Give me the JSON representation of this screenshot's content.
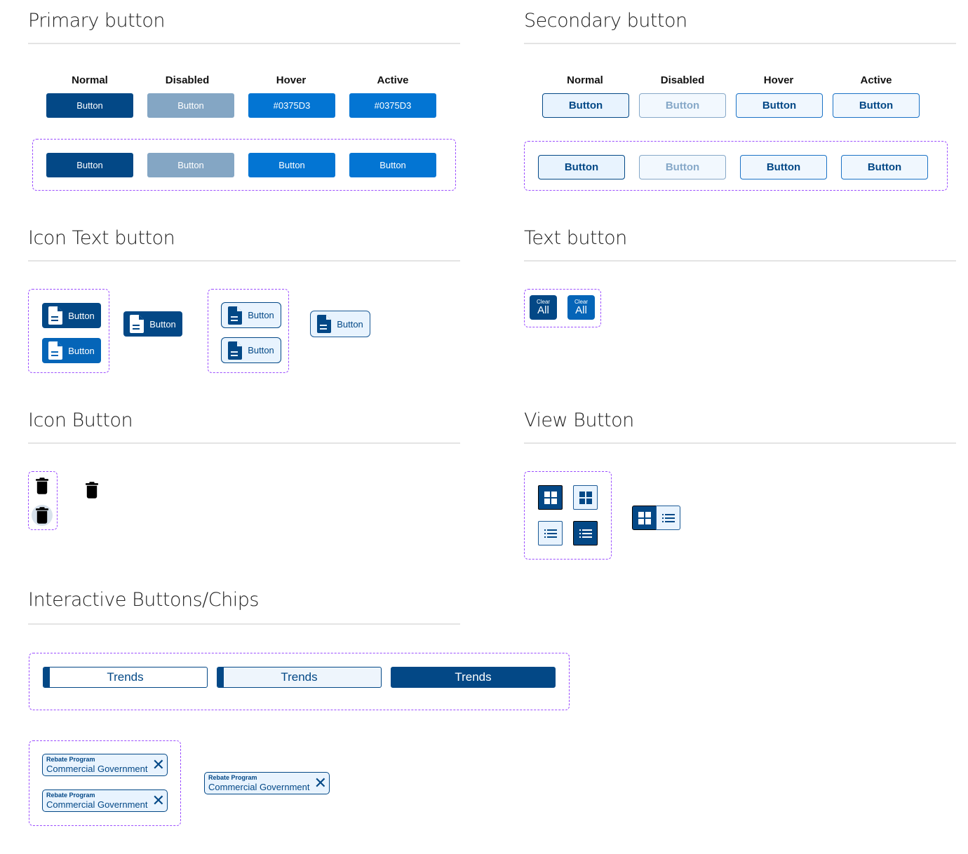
{
  "sections": {
    "primary": "Primary button",
    "secondary": "Secondary button",
    "icon_text": "Icon Text button",
    "text": "Text button",
    "icon": "Icon Button",
    "view": "View Button",
    "chips": "Interactive Buttons/Chips"
  },
  "states": [
    "Normal",
    "Disabled",
    "Hover",
    "Active"
  ],
  "primary": {
    "row1": [
      "Button",
      "Button",
      "#0375D3",
      "#0375D3"
    ],
    "row2": [
      "Button",
      "Button",
      "Button",
      "Button"
    ]
  },
  "secondary": {
    "row1": [
      "Button",
      "Button",
      "Button",
      "Button"
    ],
    "row2": [
      "Button",
      "Button",
      "Button",
      "Button"
    ]
  },
  "icon_text_label": "Button",
  "text_button": {
    "small": "Clear",
    "big": "All"
  },
  "trends_label": "Trends",
  "chip": {
    "label": "Rebate Program",
    "value": "Commercial Government"
  },
  "colors": {
    "primary": "#034886",
    "hover": "#0375D3",
    "disabled": "#84A6C4",
    "light_bg": "#E8F3FE",
    "guide": "#9B4DFF"
  }
}
